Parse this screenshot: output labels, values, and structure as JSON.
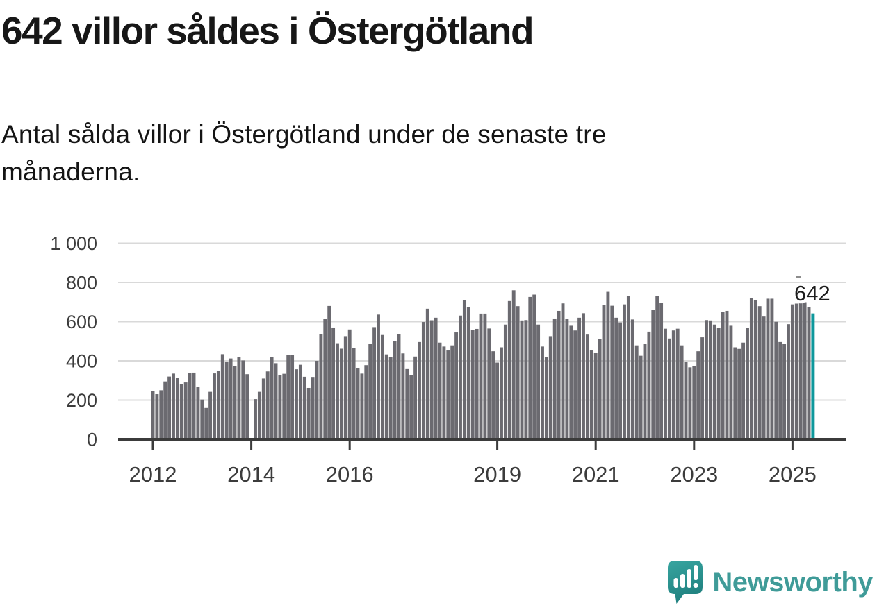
{
  "header": {
    "title": "642 villor såldes i Östergötland",
    "subtitle": "Antal sålda villor i Östergötland under de senaste tre månaderna.",
    "subtitle_lines": [
      "Antal sålda villor i Östergötland under de senaste tre",
      "månaderna."
    ]
  },
  "chart_data": {
    "type": "bar",
    "title": "642 villor såldes i Östergötland",
    "xlabel": "",
    "ylabel": "",
    "x_unit": "month",
    "x_start": "2012-01",
    "x_end": "2025-06",
    "ylim": [
      0,
      1000
    ],
    "grid": true,
    "legend": "none",
    "yticks": [
      0,
      200,
      400,
      600,
      800,
      1000
    ],
    "ytick_labels": [
      "0",
      "200",
      "400",
      "600",
      "800",
      "1 000"
    ],
    "year_ticks": [
      {
        "label": "2012",
        "month_index": 0
      },
      {
        "label": "2014",
        "month_index": 24
      },
      {
        "label": "2016",
        "month_index": 48
      },
      {
        "label": "2019",
        "month_index": 84
      },
      {
        "label": "2021",
        "month_index": 108
      },
      {
        "label": "2023",
        "month_index": 132
      },
      {
        "label": "2025",
        "month_index": 156
      }
    ],
    "values": [
      245,
      230,
      250,
      295,
      320,
      335,
      315,
      283,
      290,
      337,
      340,
      268,
      203,
      160,
      242,
      336,
      348,
      434,
      396,
      412,
      374,
      418,
      402,
      332,
      0,
      205,
      242,
      310,
      346,
      420,
      388,
      328,
      334,
      430,
      430,
      357,
      380,
      319,
      262,
      318,
      400,
      535,
      615,
      680,
      570,
      490,
      462,
      526,
      560,
      466,
      361,
      335,
      378,
      487,
      572,
      636,
      532,
      433,
      419,
      501,
      538,
      438,
      358,
      327,
      422,
      496,
      598,
      666,
      607,
      620,
      493,
      473,
      453,
      479,
      545,
      631,
      709,
      674,
      558,
      563,
      641,
      641,
      565,
      449,
      391,
      469,
      585,
      705,
      760,
      679,
      606,
      608,
      726,
      738,
      585,
      473,
      420,
      526,
      616,
      655,
      693,
      614,
      579,
      555,
      620,
      643,
      534,
      453,
      441,
      511,
      685,
      752,
      681,
      620,
      596,
      688,
      732,
      611,
      479,
      426,
      485,
      549,
      661,
      732,
      696,
      564,
      514,
      555,
      564,
      479,
      394,
      367,
      373,
      449,
      520,
      608,
      606,
      585,
      567,
      649,
      655,
      579,
      469,
      461,
      493,
      567,
      720,
      708,
      679,
      626,
      717,
      717,
      599,
      496,
      488,
      587,
      688,
      692,
      696,
      699,
      673,
      642
    ],
    "highlight_last": true,
    "annotation": {
      "text": "642",
      "value": 642
    }
  },
  "footer": {
    "brand": "Newsworthy"
  },
  "colors": {
    "bar": "#6b6a70",
    "highlight": "#0e989c",
    "grid": "#d9d9d9",
    "axis": "#3b3b3b",
    "axis_text": "#3c3c3c",
    "annotation_text": "#1d1d1d",
    "title_text": "#171717",
    "brand_teal": "#3f9b98",
    "logo_gradient_top": "#36a39e",
    "logo_gradient_bottom": "#1e7e7d"
  }
}
